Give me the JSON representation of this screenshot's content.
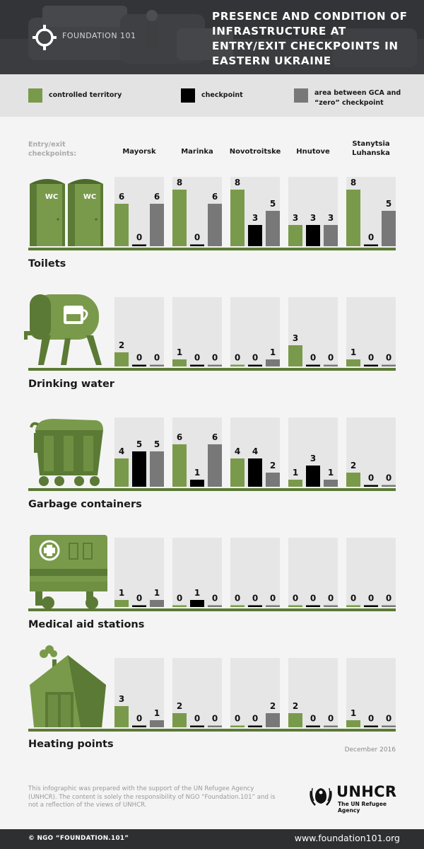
{
  "title": "PRESENCE AND CONDITION OF INFRASTRUCTURE AT ENTRY/EXIT CHECKPOINTS IN EASTERN UKRAINE",
  "logo_text": "FOUNDATION 101",
  "legend": [
    {
      "label": "controlled territory",
      "color": "#7a9a4b"
    },
    {
      "label": "checkpoint",
      "color": "#000000"
    },
    {
      "label": "area between GCA and “zero” checkpoint",
      "color": "#787878"
    }
  ],
  "columns_label": "Entry/exit checkpoints:",
  "date": "December 2016",
  "footnote": "This infographic was prepared with the support of the UN Refugee Agency (UNHCR). The content is solely the responsibility of NGO “Foundation.101” and is not a reflection of the views of UNHCR.",
  "unhcr": {
    "name": "UNHCR",
    "tagline": "The UN Refugee Agency"
  },
  "footer": {
    "left": "© NGO “FOUNDATION.101”",
    "right": "www.foundation101.org"
  },
  "icons": [
    "portable-toilets-icon",
    "water-tank-icon",
    "garbage-container-icon",
    "medical-trailer-icon",
    "heated-tent-icon"
  ],
  "colors": {
    "green": "#7a9a4b",
    "black": "#000000",
    "gray": "#787878",
    "panel": "#e6e6e6",
    "baseline": "#5b7a35"
  },
  "chart_data": {
    "type": "bar",
    "categories": [
      "Mayorsk",
      "Marinka",
      "Novotroitske",
      "Hnutove",
      "Stanytsia Luhanska"
    ],
    "series_names": [
      "controlled territory",
      "checkpoint",
      "area between GCA and “zero” checkpoint"
    ],
    "ylim": [
      0,
      8
    ],
    "groups": [
      {
        "name": "Toilets",
        "values": [
          [
            6,
            0,
            6
          ],
          [
            8,
            0,
            6
          ],
          [
            8,
            3,
            5
          ],
          [
            3,
            3,
            3
          ],
          [
            8,
            0,
            5
          ]
        ]
      },
      {
        "name": "Drinking water",
        "values": [
          [
            2,
            0,
            0
          ],
          [
            1,
            0,
            0
          ],
          [
            0,
            0,
            1
          ],
          [
            3,
            0,
            0
          ],
          [
            1,
            0,
            0
          ]
        ]
      },
      {
        "name": "Garbage containers",
        "values": [
          [
            4,
            5,
            5
          ],
          [
            6,
            1,
            6
          ],
          [
            4,
            4,
            2
          ],
          [
            1,
            3,
            1
          ],
          [
            2,
            0,
            0
          ]
        ]
      },
      {
        "name": "Medical aid stations",
        "values": [
          [
            1,
            0,
            1
          ],
          [
            0,
            1,
            0
          ],
          [
            0,
            0,
            0
          ],
          [
            0,
            0,
            0
          ],
          [
            0,
            0,
            0
          ]
        ]
      },
      {
        "name": "Heating points",
        "values": [
          [
            3,
            0,
            1
          ],
          [
            2,
            0,
            0
          ],
          [
            0,
            0,
            2
          ],
          [
            2,
            0,
            0
          ],
          [
            1,
            0,
            0
          ]
        ]
      }
    ]
  }
}
